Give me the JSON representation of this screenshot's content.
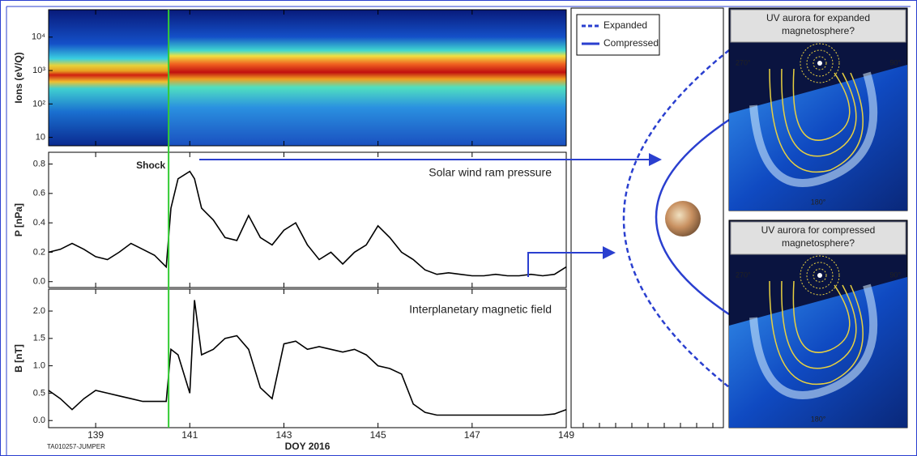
{
  "chart_data": [
    {
      "type": "spectrogram",
      "ylabel": "Ions (eV/Q)",
      "log": true,
      "ylim": [
        5.6,
        66000
      ],
      "yticks": [
        10,
        {
          "value": 100,
          "label": "10²"
        },
        {
          "value": 1000,
          "label": "10³"
        },
        {
          "value": 10000,
          "label": "10⁴"
        }
      ],
      "xlim": [
        138,
        149
      ],
      "xticks": [
        139,
        141,
        143,
        145,
        147,
        149
      ]
    },
    {
      "type": "line",
      "ylabel": "P [nPa]",
      "annotation": "Solar wind ram pressure",
      "color": "#000000",
      "ylim": [
        -0.04,
        0.88
      ],
      "yticks": [
        {
          "value": 0,
          "label": "0.0"
        },
        0.2,
        0.4,
        0.6,
        0.8
      ],
      "xlim": [
        138,
        149
      ],
      "xticks": [
        139,
        141,
        143,
        145,
        147,
        149
      ],
      "x": [
        138,
        138.25,
        138.5,
        138.75,
        139,
        139.25,
        139.5,
        139.75,
        140,
        140.25,
        140.5,
        140.6,
        140.75,
        141,
        141.1,
        141.25,
        141.5,
        141.75,
        142,
        142.25,
        142.5,
        142.75,
        143,
        143.25,
        143.5,
        143.75,
        144,
        144.25,
        144.5,
        144.75,
        145,
        145.25,
        145.5,
        145.75,
        146,
        146.25,
        146.5,
        146.75,
        147,
        147.25,
        147.5,
        147.75,
        148,
        148.25,
        148.5,
        148.75,
        149
      ],
      "values": [
        0.2,
        0.22,
        0.26,
        0.22,
        0.17,
        0.15,
        0.2,
        0.26,
        0.22,
        0.18,
        0.1,
        0.5,
        0.7,
        0.75,
        0.7,
        0.5,
        0.42,
        0.3,
        0.28,
        0.45,
        0.3,
        0.25,
        0.35,
        0.4,
        0.25,
        0.15,
        0.2,
        0.12,
        0.2,
        0.25,
        0.38,
        0.3,
        0.2,
        0.15,
        0.08,
        0.05,
        0.06,
        0.05,
        0.04,
        0.04,
        0.05,
        0.04,
        0.04,
        0.05,
        0.04,
        0.05,
        0.1
      ]
    },
    {
      "type": "line",
      "ylabel": "B [nT]",
      "annotation": "Interplanetary magnetic field",
      "color": "#000000",
      "xlabel": "DOY 2016",
      "ylim": [
        -0.13,
        2.4
      ],
      "yticks": [
        {
          "value": 0,
          "label": "0.0"
        },
        0.5,
        {
          "value": 1,
          "label": "1.0"
        },
        1.5,
        {
          "value": 2,
          "label": "2.0"
        }
      ],
      "xlim": [
        138,
        149
      ],
      "xticks": [
        139,
        141,
        143,
        145,
        147,
        149
      ],
      "x": [
        138,
        138.25,
        138.5,
        138.75,
        139,
        139.25,
        139.5,
        139.75,
        140,
        140.25,
        140.5,
        140.6,
        140.75,
        141,
        141.1,
        141.25,
        141.5,
        141.75,
        142,
        142.25,
        142.5,
        142.75,
        143,
        143.25,
        143.5,
        143.75,
        144,
        144.25,
        144.5,
        144.75,
        145,
        145.25,
        145.5,
        145.75,
        146,
        146.25,
        146.5,
        146.75,
        147,
        147.25,
        147.5,
        147.75,
        148,
        148.25,
        148.5,
        148.75,
        149
      ],
      "values": [
        0.55,
        0.4,
        0.2,
        0.4,
        0.55,
        0.5,
        0.45,
        0.4,
        0.35,
        0.35,
        0.35,
        1.3,
        1.2,
        0.5,
        2.2,
        1.2,
        1.3,
        1.5,
        1.55,
        1.3,
        0.6,
        0.4,
        1.4,
        1.45,
        1.3,
        1.35,
        1.3,
        1.25,
        1.3,
        1.2,
        1.0,
        0.95,
        0.85,
        0.3,
        0.15,
        0.1,
        0.1,
        0.1,
        0.1,
        0.1,
        0.1,
        0.1,
        0.1,
        0.1,
        0.1,
        0.12,
        0.2
      ]
    }
  ],
  "shock": {
    "label": "Shock",
    "x": 140.55,
    "color": "#33cc33"
  },
  "credit": "TA010257-JUMPER",
  "diagram": {
    "legend": [
      "Expanded",
      "Compressed"
    ]
  },
  "aurora": [
    {
      "title_lines": [
        "UV aurora for expanded",
        "magnetosphere?"
      ],
      "labels": [
        "270°",
        "90°",
        "180°"
      ]
    },
    {
      "title_lines": [
        "UV aurora for compressed",
        "magnetosphere?"
      ],
      "labels": [
        "270°",
        "90°",
        "180°"
      ]
    }
  ]
}
